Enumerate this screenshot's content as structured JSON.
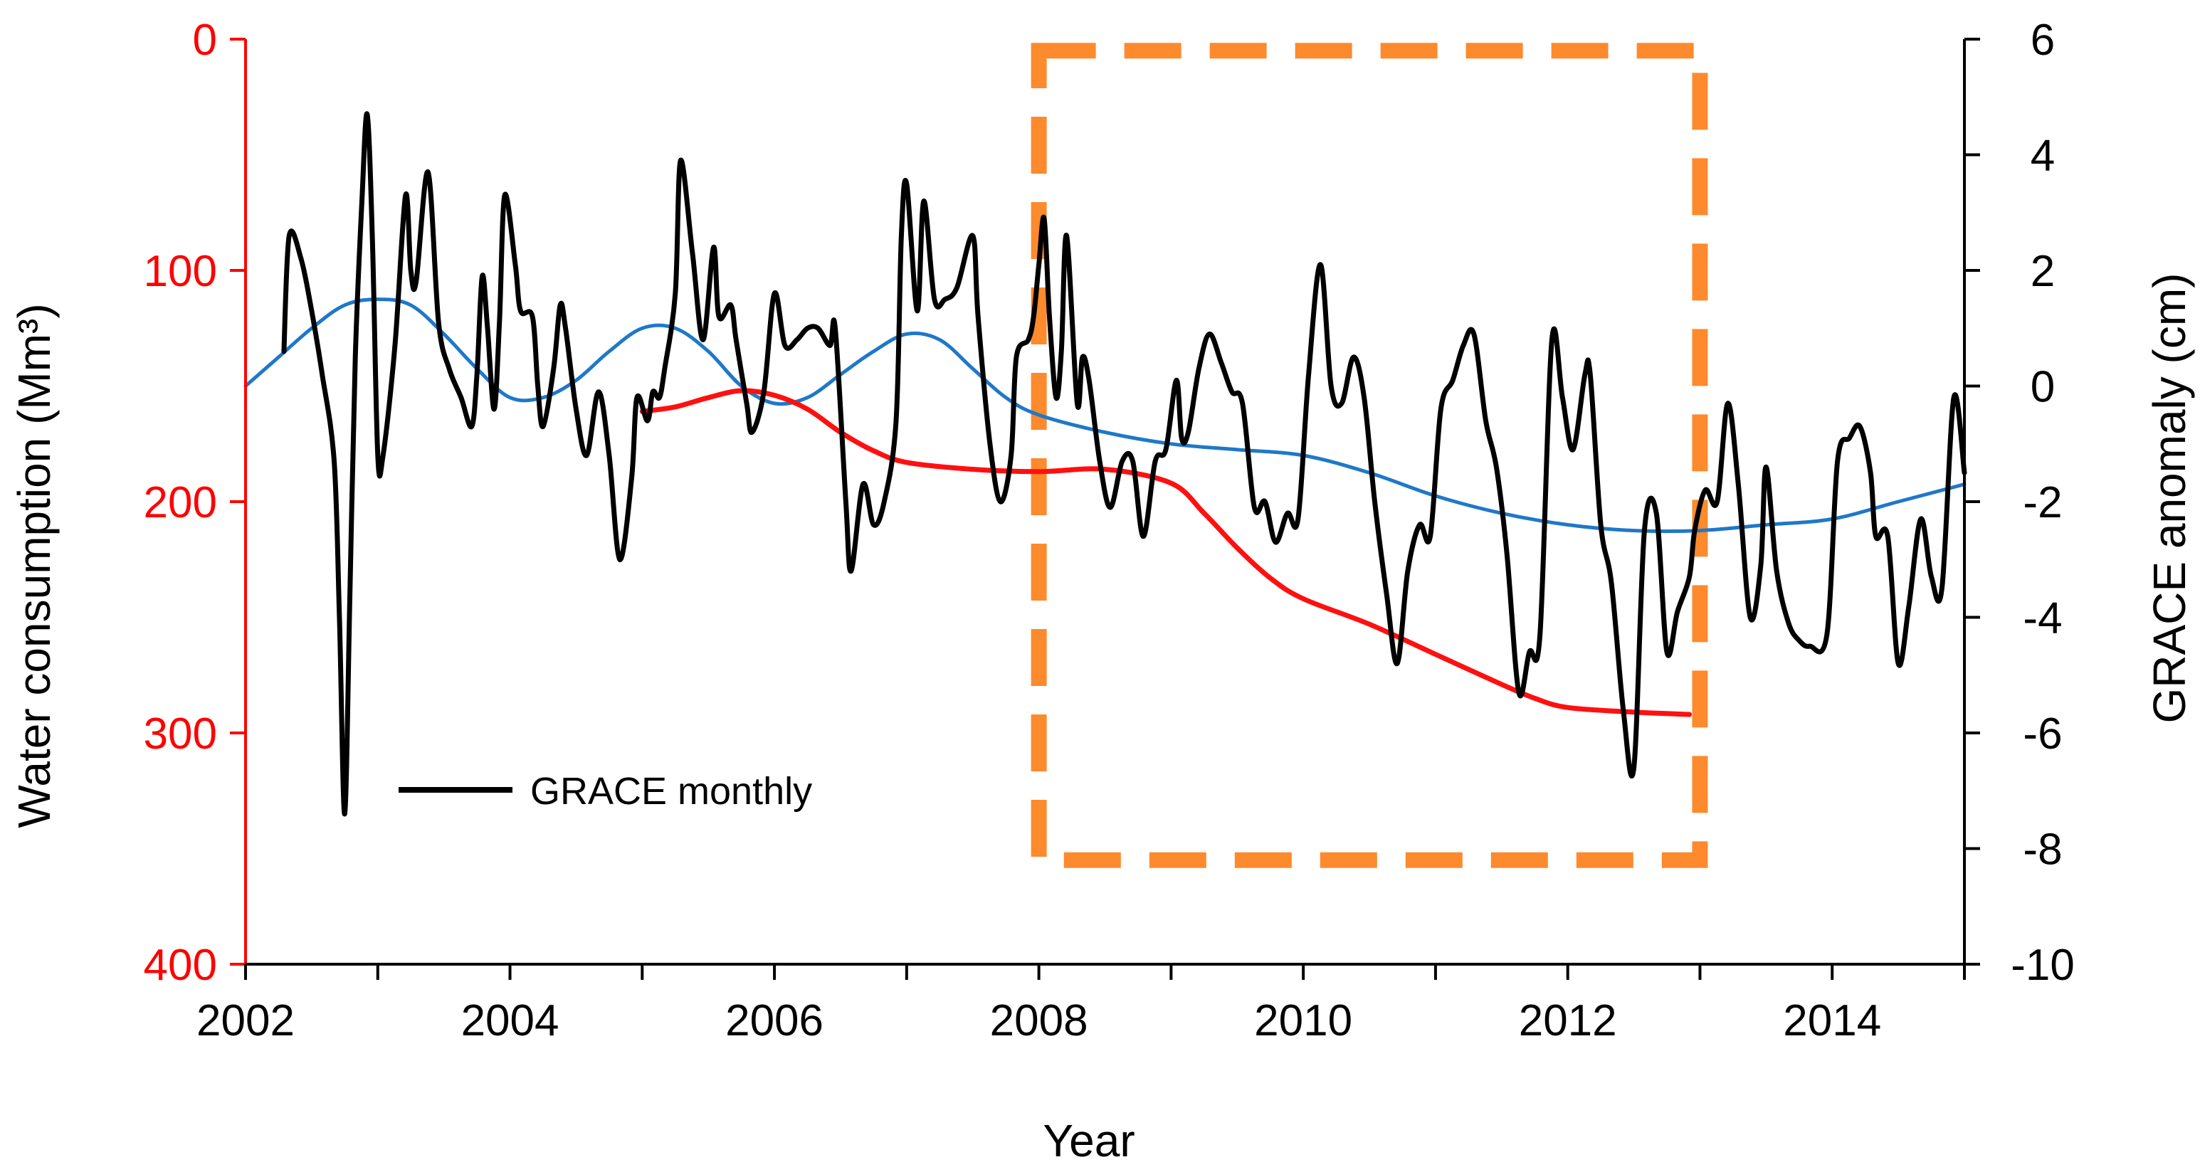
{
  "chart_data": {
    "type": "line",
    "xlabel": "Year",
    "ylabel_left": "Water consumption (Mm³)",
    "ylabel_right": "GRACE anomaly  (cm)",
    "xlim": [
      2002,
      2015
    ],
    "x_ticks": [
      2002,
      2004,
      2006,
      2008,
      2010,
      2012,
      2014
    ],
    "x_tick_labels": [
      "2002",
      "2004",
      "2006",
      "2008",
      "2010",
      "2012",
      "2014"
    ],
    "ylim_left": [
      400,
      0
    ],
    "y_left_inverted": true,
    "y_left_ticks": [
      0,
      100,
      200,
      300,
      400
    ],
    "y_left_tick_labels": [
      "0",
      "100",
      "200",
      "300",
      "400"
    ],
    "ylim_right": [
      -10,
      6
    ],
    "y_right_ticks": [
      6,
      4,
      2,
      0,
      -2,
      -4,
      -6,
      -8,
      -10
    ],
    "y_right_tick_labels": [
      "6",
      "4",
      "2",
      "0",
      "-2",
      "-4",
      "-6",
      "-8",
      "-10"
    ],
    "grid": false,
    "legend": {
      "position": "lower-left",
      "entries": [
        "GRACE monthly"
      ]
    },
    "highlight_box": {
      "x_range": [
        2008,
        2013
      ],
      "y_right_range": [
        -8.2,
        5.8
      ],
      "color": "#fd8a2c",
      "style": "dashed"
    },
    "colors": {
      "left_axis": "#ff0000",
      "grace_monthly": "#000000",
      "grace_trend": "#1f78c8",
      "water_consumption": "#ff1010",
      "highlight": "#fd8a2c"
    },
    "series": [
      {
        "name": "GRACE monthly",
        "axis": "right",
        "color": "#000000",
        "points": [
          [
            2002.29,
            0.6
          ],
          [
            2002.33,
            2.6
          ],
          [
            2002.42,
            2.2
          ],
          [
            2002.5,
            1.3
          ],
          [
            2002.58,
            0.2
          ],
          [
            2002.67,
            -1.3
          ],
          [
            2002.71,
            -4.0
          ],
          [
            2002.75,
            -7.4
          ],
          [
            2002.79,
            -3.5
          ],
          [
            2002.83,
            0.5
          ],
          [
            2002.88,
            3.2
          ],
          [
            2002.92,
            4.7
          ],
          [
            2002.96,
            2.5
          ],
          [
            2003.0,
            -1.2
          ],
          [
            2003.04,
            -1.2
          ],
          [
            2003.13,
            0.7
          ],
          [
            2003.21,
            3.3
          ],
          [
            2003.25,
            2.0
          ],
          [
            2003.29,
            1.8
          ],
          [
            2003.38,
            3.7
          ],
          [
            2003.46,
            1.1
          ],
          [
            2003.54,
            0.3
          ],
          [
            2003.63,
            -0.2
          ],
          [
            2003.71,
            -0.7
          ],
          [
            2003.75,
            0.2
          ],
          [
            2003.79,
            1.9
          ],
          [
            2003.83,
            1.0
          ],
          [
            2003.88,
            -0.4
          ],
          [
            2003.92,
            1.1
          ],
          [
            2003.96,
            3.3
          ],
          [
            2004.04,
            2.1
          ],
          [
            2004.08,
            1.3
          ],
          [
            2004.17,
            1.2
          ],
          [
            2004.21,
            0.0
          ],
          [
            2004.25,
            -0.7
          ],
          [
            2004.33,
            0.3
          ],
          [
            2004.38,
            1.4
          ],
          [
            2004.42,
            1.0
          ],
          [
            2004.5,
            -0.4
          ],
          [
            2004.58,
            -1.2
          ],
          [
            2004.67,
            -0.1
          ],
          [
            2004.75,
            -1.2
          ],
          [
            2004.83,
            -3.0
          ],
          [
            2004.92,
            -1.6
          ],
          [
            2004.96,
            -0.2
          ],
          [
            2005.04,
            -0.6
          ],
          [
            2005.08,
            -0.1
          ],
          [
            2005.13,
            -0.2
          ],
          [
            2005.17,
            0.3
          ],
          [
            2005.25,
            1.6
          ],
          [
            2005.29,
            3.9
          ],
          [
            2005.38,
            2.3
          ],
          [
            2005.46,
            0.8
          ],
          [
            2005.54,
            2.4
          ],
          [
            2005.58,
            1.2
          ],
          [
            2005.67,
            1.4
          ],
          [
            2005.71,
            0.8
          ],
          [
            2005.79,
            -0.3
          ],
          [
            2005.83,
            -0.8
          ],
          [
            2005.92,
            -0.1
          ],
          [
            2006.0,
            1.6
          ],
          [
            2006.08,
            0.7
          ],
          [
            2006.17,
            0.8
          ],
          [
            2006.25,
            1.0
          ],
          [
            2006.33,
            1.0
          ],
          [
            2006.42,
            0.7
          ],
          [
            2006.46,
            1.0
          ],
          [
            2006.54,
            -2.0
          ],
          [
            2006.58,
            -3.2
          ],
          [
            2006.67,
            -1.7
          ],
          [
            2006.75,
            -2.4
          ],
          [
            2006.83,
            -2.0
          ],
          [
            2006.92,
            -0.6
          ],
          [
            2006.96,
            2.6
          ],
          [
            2007.0,
            3.5
          ],
          [
            2007.08,
            1.3
          ],
          [
            2007.13,
            3.2
          ],
          [
            2007.21,
            1.5
          ],
          [
            2007.29,
            1.5
          ],
          [
            2007.38,
            1.7
          ],
          [
            2007.5,
            2.6
          ],
          [
            2007.54,
            1.2
          ],
          [
            2007.63,
            -1.0
          ],
          [
            2007.71,
            -2.0
          ],
          [
            2007.79,
            -1.2
          ],
          [
            2007.83,
            0.5
          ],
          [
            2007.92,
            0.8
          ],
          [
            2007.96,
            1.2
          ],
          [
            2008.0,
            2.1
          ],
          [
            2008.04,
            2.9
          ],
          [
            2008.08,
            1.2
          ],
          [
            2008.13,
            -0.2
          ],
          [
            2008.17,
            0.6
          ],
          [
            2008.21,
            2.6
          ],
          [
            2008.29,
            -0.3
          ],
          [
            2008.33,
            0.5
          ],
          [
            2008.38,
            0.1
          ],
          [
            2008.46,
            -1.3
          ],
          [
            2008.54,
            -2.1
          ],
          [
            2008.63,
            -1.3
          ],
          [
            2008.71,
            -1.3
          ],
          [
            2008.79,
            -2.6
          ],
          [
            2008.88,
            -1.3
          ],
          [
            2008.96,
            -1.1
          ],
          [
            2009.04,
            0.1
          ],
          [
            2009.08,
            -0.9
          ],
          [
            2009.13,
            -0.8
          ],
          [
            2009.21,
            0.3
          ],
          [
            2009.29,
            0.9
          ],
          [
            2009.38,
            0.4
          ],
          [
            2009.46,
            -0.1
          ],
          [
            2009.54,
            -0.3
          ],
          [
            2009.63,
            -2.1
          ],
          [
            2009.71,
            -2.0
          ],
          [
            2009.79,
            -2.7
          ],
          [
            2009.88,
            -2.2
          ],
          [
            2009.96,
            -2.3
          ],
          [
            2010.04,
            0.2
          ],
          [
            2010.13,
            2.1
          ],
          [
            2010.21,
            0.0
          ],
          [
            2010.29,
            -0.3
          ],
          [
            2010.38,
            0.5
          ],
          [
            2010.46,
            -0.2
          ],
          [
            2010.54,
            -2.0
          ],
          [
            2010.63,
            -3.6
          ],
          [
            2010.71,
            -4.8
          ],
          [
            2010.79,
            -3.2
          ],
          [
            2010.88,
            -2.4
          ],
          [
            2010.96,
            -2.6
          ],
          [
            2011.04,
            -0.4
          ],
          [
            2011.13,
            0.1
          ],
          [
            2011.21,
            0.7
          ],
          [
            2011.29,
            0.9
          ],
          [
            2011.38,
            -0.6
          ],
          [
            2011.46,
            -1.4
          ],
          [
            2011.54,
            -2.9
          ],
          [
            2011.63,
            -5.3
          ],
          [
            2011.71,
            -4.6
          ],
          [
            2011.79,
            -4.3
          ],
          [
            2011.88,
            0.8
          ],
          [
            2011.96,
            -0.2
          ],
          [
            2012.04,
            -1.1
          ],
          [
            2012.13,
            0.2
          ],
          [
            2012.17,
            0.2
          ],
          [
            2012.25,
            -2.4
          ],
          [
            2012.33,
            -3.4
          ],
          [
            2012.42,
            -5.6
          ],
          [
            2012.5,
            -6.6
          ],
          [
            2012.58,
            -2.5
          ],
          [
            2012.67,
            -2.2
          ],
          [
            2012.75,
            -4.6
          ],
          [
            2012.83,
            -3.9
          ],
          [
            2012.92,
            -3.3
          ],
          [
            2012.96,
            -2.5
          ],
          [
            2013.04,
            -1.8
          ],
          [
            2013.13,
            -2.0
          ],
          [
            2013.21,
            -0.3
          ],
          [
            2013.29,
            -1.7
          ],
          [
            2013.38,
            -4.0
          ],
          [
            2013.46,
            -3.1
          ],
          [
            2013.5,
            -1.4
          ],
          [
            2013.58,
            -3.2
          ],
          [
            2013.67,
            -4.1
          ],
          [
            2013.75,
            -4.4
          ],
          [
            2013.83,
            -4.5
          ],
          [
            2013.96,
            -4.3
          ],
          [
            2014.04,
            -1.3
          ],
          [
            2014.13,
            -0.9
          ],
          [
            2014.21,
            -0.7
          ],
          [
            2014.29,
            -1.5
          ],
          [
            2014.33,
            -2.6
          ],
          [
            2014.42,
            -2.6
          ],
          [
            2014.5,
            -4.8
          ],
          [
            2014.58,
            -3.8
          ],
          [
            2014.67,
            -2.3
          ],
          [
            2014.75,
            -3.3
          ],
          [
            2014.83,
            -3.5
          ],
          [
            2014.92,
            -0.2
          ],
          [
            2015.0,
            -1.5
          ]
        ]
      },
      {
        "name": "",
        "axis": "right",
        "color": "#1f78c8",
        "points": [
          [
            2002.0,
            0.0
          ],
          [
            2002.25,
            0.5
          ],
          [
            2002.5,
            1.0
          ],
          [
            2002.75,
            1.4
          ],
          [
            2003.0,
            1.5
          ],
          [
            2003.25,
            1.4
          ],
          [
            2003.5,
            0.9
          ],
          [
            2003.75,
            0.3
          ],
          [
            2004.0,
            -0.2
          ],
          [
            2004.25,
            -0.2
          ],
          [
            2004.5,
            0.1
          ],
          [
            2004.75,
            0.6
          ],
          [
            2005.0,
            1.0
          ],
          [
            2005.25,
            1.0
          ],
          [
            2005.5,
            0.6
          ],
          [
            2005.75,
            0.0
          ],
          [
            2006.0,
            -0.3
          ],
          [
            2006.25,
            -0.2
          ],
          [
            2006.5,
            0.2
          ],
          [
            2006.75,
            0.6
          ],
          [
            2007.0,
            0.9
          ],
          [
            2007.25,
            0.8
          ],
          [
            2007.5,
            0.3
          ],
          [
            2007.75,
            -0.2
          ],
          [
            2008.0,
            -0.5
          ],
          [
            2008.5,
            -0.8
          ],
          [
            2009.0,
            -1.0
          ],
          [
            2009.5,
            -1.1
          ],
          [
            2010.0,
            -1.2
          ],
          [
            2010.5,
            -1.5
          ],
          [
            2011.0,
            -1.9
          ],
          [
            2011.5,
            -2.2
          ],
          [
            2012.0,
            -2.4
          ],
          [
            2012.5,
            -2.5
          ],
          [
            2013.0,
            -2.5
          ],
          [
            2013.5,
            -2.4
          ],
          [
            2014.0,
            -2.3
          ],
          [
            2014.5,
            -2.0
          ],
          [
            2015.0,
            -1.7
          ]
        ]
      },
      {
        "name": "",
        "axis": "left",
        "color": "#ff1010",
        "points": [
          [
            2005.0,
            161
          ],
          [
            2005.25,
            159
          ],
          [
            2005.5,
            155
          ],
          [
            2005.75,
            152
          ],
          [
            2006.0,
            154
          ],
          [
            2006.25,
            160
          ],
          [
            2006.5,
            170
          ],
          [
            2006.75,
            178
          ],
          [
            2007.0,
            183
          ],
          [
            2007.5,
            186
          ],
          [
            2008.0,
            187
          ],
          [
            2008.5,
            186
          ],
          [
            2009.0,
            192
          ],
          [
            2009.25,
            205
          ],
          [
            2009.5,
            220
          ],
          [
            2009.75,
            233
          ],
          [
            2010.0,
            242
          ],
          [
            2010.5,
            253
          ],
          [
            2011.0,
            266
          ],
          [
            2011.5,
            279
          ],
          [
            2011.75,
            285
          ],
          [
            2012.0,
            289
          ],
          [
            2012.5,
            291
          ],
          [
            2012.92,
            292
          ]
        ]
      }
    ]
  }
}
